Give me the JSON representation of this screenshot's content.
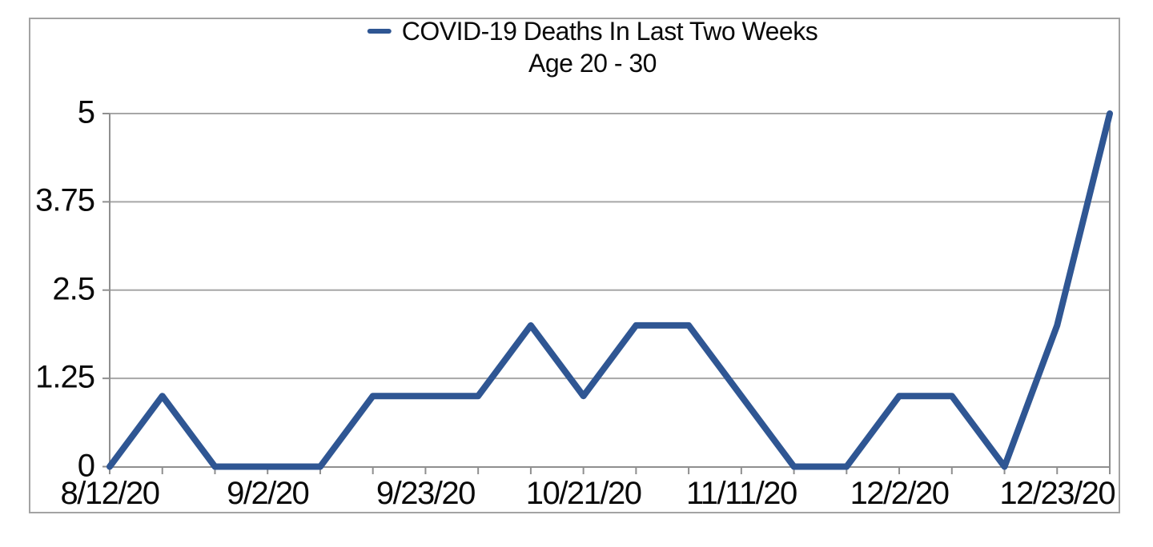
{
  "title": {
    "line1": "COVID-19 Deaths In Last Two Weeks",
    "line2": "Age 20 - 30"
  },
  "colors": {
    "line": "#2f5693",
    "gridline": "#a7a7a7",
    "axis": "#8f8f8f",
    "frame_border": "#a3a3a3",
    "text": "#0a0a0a",
    "background": "#ffffff"
  },
  "chart_data": {
    "type": "line",
    "title": "COVID-19 Deaths In Last Two Weeks",
    "subtitle": "Age 20 - 30",
    "series": [
      {
        "name": "COVID-19 Deaths In Last Two Weeks",
        "color": "#2f5693",
        "values": [
          0,
          1,
          0,
          0,
          0,
          1,
          1,
          1,
          2,
          1,
          2,
          2,
          1,
          0,
          0,
          1,
          1,
          0,
          2,
          5
        ]
      }
    ],
    "n_points": 20,
    "x_tick_labels": [
      "8/12/20",
      "9/2/20",
      "9/23/20",
      "10/21/20",
      "11/11/20",
      "12/2/20",
      "12/23/20"
    ],
    "x_tick_indices": [
      0,
      3,
      6,
      9,
      12,
      15,
      18
    ],
    "y_ticks": [
      0,
      1.25,
      2.5,
      3.75,
      5
    ],
    "y_tick_labels": [
      "0",
      "1.25",
      "2.5",
      "3.75",
      "5"
    ],
    "ylim": [
      0,
      5
    ],
    "legend_position": "top-center",
    "grid": "horizontal"
  }
}
